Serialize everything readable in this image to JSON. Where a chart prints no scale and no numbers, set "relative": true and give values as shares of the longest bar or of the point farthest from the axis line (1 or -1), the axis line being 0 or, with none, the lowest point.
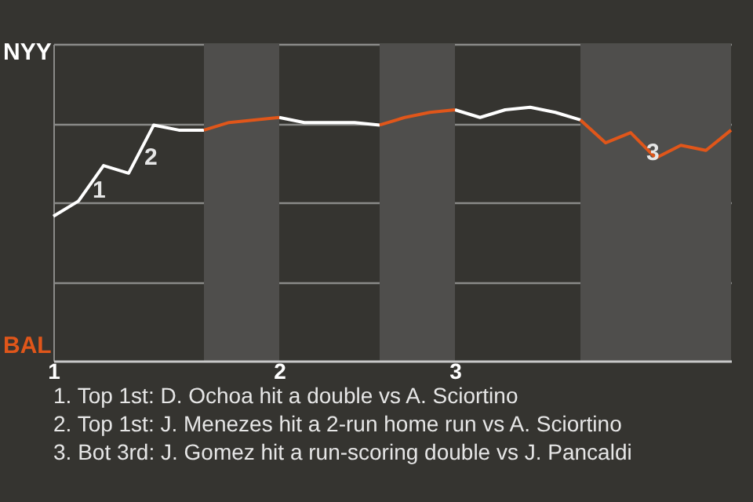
{
  "chart_data": {
    "type": "line",
    "relative": true,
    "categories": [
      "1",
      null,
      null,
      null,
      null,
      null,
      null,
      null,
      null,
      "2",
      null,
      null,
      null,
      null,
      null,
      null,
      "3",
      null,
      null,
      null,
      null,
      null,
      null,
      null,
      null,
      null,
      null,
      null
    ],
    "grid": "y",
    "legend": false,
    "marker": "none",
    "line_style": "solid",
    "series": [
      {
        "color": "#ffffff",
        "values": [
          0.57,
          0.63,
          0.77,
          0.74,
          0.93,
          0.91,
          0.91,
          null,
          null,
          0.96,
          0.94,
          0.94,
          0.94,
          0.93,
          null,
          null,
          0.99,
          0.96,
          0.99,
          1,
          0.98,
          0.95,
          null,
          null,
          null,
          null,
          null,
          null
        ]
      },
      {
        "color": "#e0561a",
        "values": [
          null,
          null,
          null,
          null,
          null,
          null,
          0.91,
          0.94,
          0.95,
          0.96,
          null,
          null,
          null,
          0.93,
          0.96,
          0.98,
          0.99,
          null,
          null,
          null,
          null,
          0.95,
          0.86,
          0.9,
          0.8,
          0.85,
          0.83,
          0.91
        ]
      }
    ],
    "annotations": [
      "NYY",
      "BAL",
      "1",
      "2",
      "3",
      "1. Top 1st: D. Ochoa hit a double vs A. Sciortino",
      "2. Top 1st: J. Menezes hit a 2-run home run vs A. Sciortino",
      "3. Bot 3rd: J. Gomez hit a run-scoring double vs J. Pancaldi"
    ]
  }
}
